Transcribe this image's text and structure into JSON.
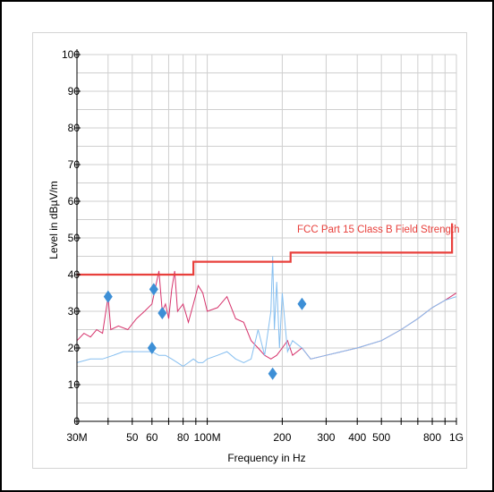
{
  "chart_data": {
    "type": "line",
    "xlabel": "Frequency in Hz",
    "ylabel": "Level in dBµV/m",
    "x_scale": "log",
    "xlim": [
      30000000,
      1000000000
    ],
    "ylim": [
      0,
      100
    ],
    "grid": true,
    "x_tick_labels": [
      {
        "value": 30000000,
        "label": "30M"
      },
      {
        "value": 50000000,
        "label": "50"
      },
      {
        "value": 60000000,
        "label": "60"
      },
      {
        "value": 80000000,
        "label": "80"
      },
      {
        "value": 100000000,
        "label": "100M"
      },
      {
        "value": 200000000,
        "label": "200"
      },
      {
        "value": 300000000,
        "label": "300"
      },
      {
        "value": 400000000,
        "label": "400"
      },
      {
        "value": 500000000,
        "label": "500"
      },
      {
        "value": 800000000,
        "label": "800"
      },
      {
        "value": 1000000000,
        "label": "1G"
      }
    ],
    "y_ticks": [
      0,
      10,
      20,
      30,
      40,
      50,
      60,
      70,
      80,
      90,
      100
    ],
    "limit_line": {
      "label": "FCC Part 15 Class B Field Strength",
      "color": "#e8403c",
      "points": [
        [
          30000000,
          40
        ],
        [
          88000000,
          40
        ],
        [
          88000000,
          43.5
        ],
        [
          216000000,
          43.5
        ],
        [
          216000000,
          46
        ],
        [
          960000000,
          46
        ],
        [
          960000000,
          54
        ]
      ]
    },
    "series": [
      {
        "color": "#d6336c",
        "description_visible": false,
        "points": [
          [
            30000000,
            22
          ],
          [
            32000000,
            24
          ],
          [
            34000000,
            23
          ],
          [
            36000000,
            25
          ],
          [
            38000000,
            24
          ],
          [
            40000000,
            34
          ],
          [
            41000000,
            25
          ],
          [
            44000000,
            26
          ],
          [
            48000000,
            25
          ],
          [
            52000000,
            28
          ],
          [
            56000000,
            30
          ],
          [
            60000000,
            32
          ],
          [
            64000000,
            41
          ],
          [
            66000000,
            30
          ],
          [
            68000000,
            32
          ],
          [
            70000000,
            28
          ],
          [
            72000000,
            36
          ],
          [
            74000000,
            41
          ],
          [
            76000000,
            30
          ],
          [
            80000000,
            32
          ],
          [
            84000000,
            27
          ],
          [
            88000000,
            32
          ],
          [
            92000000,
            37
          ],
          [
            96000000,
            35
          ],
          [
            100000000,
            30
          ],
          [
            110000000,
            31
          ],
          [
            120000000,
            34
          ],
          [
            130000000,
            28
          ],
          [
            140000000,
            27
          ],
          [
            150000000,
            22
          ],
          [
            160000000,
            20
          ],
          [
            170000000,
            18
          ],
          [
            180000000,
            17
          ],
          [
            190000000,
            18
          ],
          [
            200000000,
            20
          ],
          [
            210000000,
            22
          ],
          [
            220000000,
            18
          ],
          [
            240000000,
            20
          ],
          [
            260000000,
            17
          ],
          [
            300000000,
            18
          ],
          [
            400000000,
            20
          ],
          [
            500000000,
            22
          ],
          [
            600000000,
            25
          ],
          [
            700000000,
            28
          ],
          [
            800000000,
            31
          ],
          [
            900000000,
            33
          ],
          [
            1000000000,
            35
          ]
        ]
      },
      {
        "color": "#86bff0",
        "description_visible": false,
        "points": [
          [
            30000000,
            16
          ],
          [
            34000000,
            17
          ],
          [
            38000000,
            17
          ],
          [
            42000000,
            18
          ],
          [
            46000000,
            19
          ],
          [
            50000000,
            19
          ],
          [
            55000000,
            19
          ],
          [
            60000000,
            19
          ],
          [
            64000000,
            18
          ],
          [
            68000000,
            18
          ],
          [
            72000000,
            17
          ],
          [
            76000000,
            16
          ],
          [
            80000000,
            15
          ],
          [
            84000000,
            16
          ],
          [
            88000000,
            17
          ],
          [
            92000000,
            16
          ],
          [
            96000000,
            16
          ],
          [
            100000000,
            17
          ],
          [
            110000000,
            18
          ],
          [
            120000000,
            19
          ],
          [
            130000000,
            17
          ],
          [
            140000000,
            16
          ],
          [
            150000000,
            17
          ],
          [
            160000000,
            25
          ],
          [
            170000000,
            18
          ],
          [
            180000000,
            30
          ],
          [
            183000000,
            45
          ],
          [
            186000000,
            25
          ],
          [
            190000000,
            38
          ],
          [
            195000000,
            20
          ],
          [
            200000000,
            35
          ],
          [
            210000000,
            19
          ],
          [
            220000000,
            22
          ],
          [
            240000000,
            20
          ],
          [
            260000000,
            17
          ],
          [
            300000000,
            18
          ],
          [
            400000000,
            20
          ],
          [
            500000000,
            22
          ],
          [
            600000000,
            25
          ],
          [
            700000000,
            28
          ],
          [
            800000000,
            31
          ],
          [
            900000000,
            33
          ],
          [
            1000000000,
            34
          ]
        ]
      }
    ],
    "markers": {
      "shape": "diamond",
      "color": "#3d8fd6",
      "points": [
        [
          40000000,
          34
        ],
        [
          60000000,
          20
        ],
        [
          61000000,
          36
        ],
        [
          66000000,
          29.5
        ],
        [
          183000000,
          13
        ],
        [
          240000000,
          32
        ]
      ]
    }
  }
}
